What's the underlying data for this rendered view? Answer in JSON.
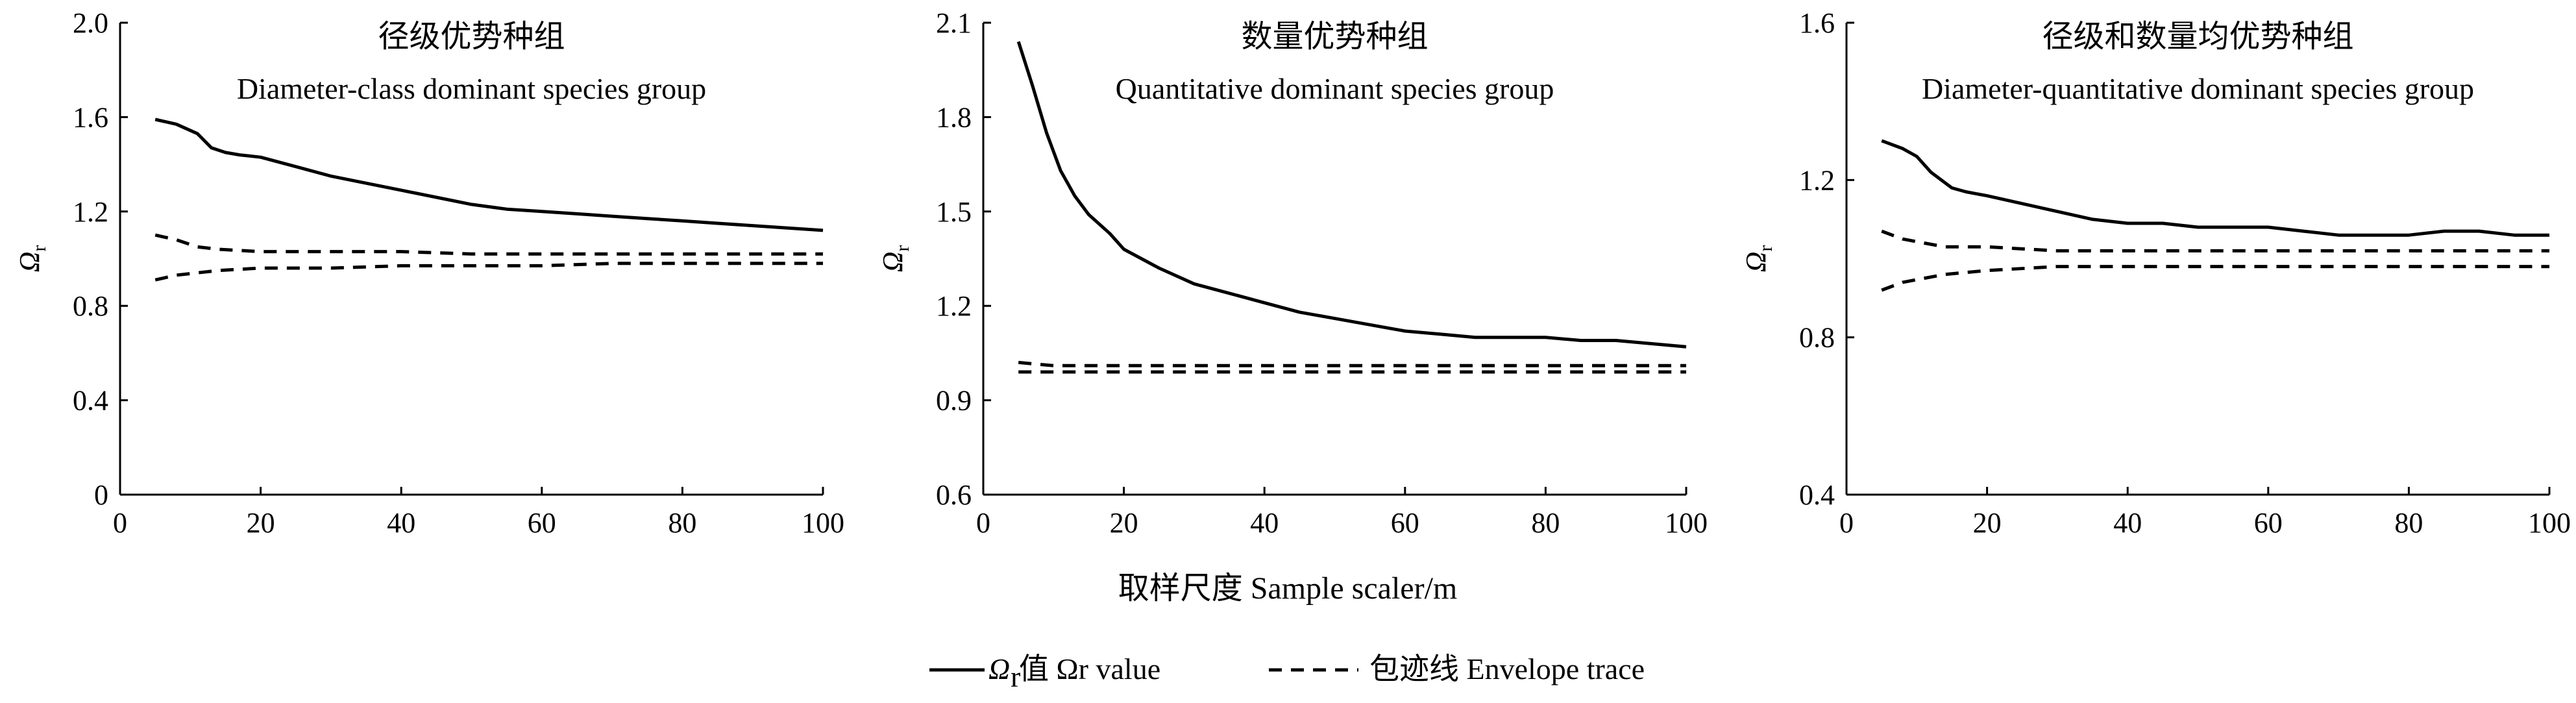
{
  "chart_data": [
    {
      "type": "line",
      "title": "径级优势种组",
      "subtitle": "Diameter-class dominant species group",
      "ylabel": "Ωr",
      "xlim": [
        0,
        100
      ],
      "ylim": [
        0,
        2.0
      ],
      "xticks": [
        0,
        20,
        40,
        60,
        80,
        100
      ],
      "yticks": [
        0,
        0.4,
        0.8,
        1.2,
        1.6,
        2.0
      ],
      "yticklabels": [
        "0",
        "0.4",
        "0.8",
        "1.2",
        "1.6",
        "2.0"
      ],
      "series": [
        {
          "role": "value",
          "x": [
            5,
            8,
            11,
            13,
            15,
            17,
            20,
            25,
            30,
            35,
            40,
            45,
            50,
            55,
            60,
            65,
            70,
            75,
            80,
            85,
            90,
            95,
            100
          ],
          "y": [
            1.59,
            1.57,
            1.53,
            1.47,
            1.45,
            1.44,
            1.43,
            1.39,
            1.35,
            1.32,
            1.29,
            1.26,
            1.23,
            1.21,
            1.2,
            1.19,
            1.18,
            1.17,
            1.16,
            1.15,
            1.14,
            1.13,
            1.12
          ]
        },
        {
          "role": "envelope-upper",
          "x": [
            5,
            8,
            11,
            14,
            20,
            30,
            40,
            50,
            60,
            70,
            80,
            90,
            100
          ],
          "y": [
            1.1,
            1.08,
            1.05,
            1.04,
            1.03,
            1.03,
            1.03,
            1.02,
            1.02,
            1.02,
            1.02,
            1.02,
            1.02
          ]
        },
        {
          "role": "envelope-lower",
          "x": [
            5,
            8,
            11,
            14,
            20,
            30,
            40,
            50,
            60,
            70,
            80,
            90,
            100
          ],
          "y": [
            0.91,
            0.93,
            0.94,
            0.95,
            0.96,
            0.96,
            0.97,
            0.97,
            0.97,
            0.98,
            0.98,
            0.98,
            0.98
          ]
        }
      ]
    },
    {
      "type": "line",
      "title": "数量优势种组",
      "subtitle": "Quantitative dominant species group",
      "ylabel": "Ωr",
      "xlim": [
        0,
        100
      ],
      "ylim": [
        0.6,
        2.1
      ],
      "xticks": [
        0,
        20,
        40,
        60,
        80,
        100
      ],
      "yticks": [
        0.6,
        0.9,
        1.2,
        1.5,
        1.8,
        2.1
      ],
      "yticklabels": [
        "0.6",
        "0.9",
        "1.2",
        "1.5",
        "1.8",
        "2.1"
      ],
      "series": [
        {
          "role": "value",
          "x": [
            5,
            7,
            9,
            11,
            13,
            15,
            18,
            20,
            25,
            30,
            35,
            40,
            45,
            50,
            55,
            60,
            65,
            70,
            75,
            80,
            85,
            90,
            95,
            100
          ],
          "y": [
            2.04,
            1.9,
            1.75,
            1.63,
            1.55,
            1.49,
            1.43,
            1.38,
            1.32,
            1.27,
            1.24,
            1.21,
            1.18,
            1.16,
            1.14,
            1.12,
            1.11,
            1.1,
            1.1,
            1.1,
            1.09,
            1.09,
            1.08,
            1.07
          ]
        },
        {
          "role": "envelope-upper",
          "x": [
            5,
            10,
            20,
            30,
            40,
            50,
            60,
            70,
            80,
            90,
            100
          ],
          "y": [
            1.02,
            1.01,
            1.01,
            1.01,
            1.01,
            1.01,
            1.01,
            1.01,
            1.01,
            1.01,
            1.01
          ]
        },
        {
          "role": "envelope-lower",
          "x": [
            5,
            10,
            20,
            30,
            40,
            50,
            60,
            70,
            80,
            90,
            100
          ],
          "y": [
            0.99,
            0.99,
            0.99,
            0.99,
            0.99,
            0.99,
            0.99,
            0.99,
            0.99,
            0.99,
            0.99
          ]
        }
      ]
    },
    {
      "type": "line",
      "title": "径级和数量均优势种组",
      "subtitle": "Diameter-quantitative dominant species group",
      "ylabel": "Ωr",
      "xlim": [
        0,
        100
      ],
      "ylim": [
        0.4,
        1.6
      ],
      "xticks": [
        0,
        20,
        40,
        60,
        80,
        100
      ],
      "yticks": [
        0.4,
        0.8,
        1.2,
        1.6
      ],
      "yticklabels": [
        "0.4",
        "0.8",
        "1.2",
        "1.6"
      ],
      "series": [
        {
          "role": "value",
          "x": [
            5,
            8,
            10,
            12,
            15,
            17,
            20,
            25,
            30,
            35,
            40,
            45,
            50,
            55,
            60,
            65,
            70,
            75,
            80,
            85,
            90,
            95,
            100
          ],
          "y": [
            1.3,
            1.28,
            1.26,
            1.22,
            1.18,
            1.17,
            1.16,
            1.14,
            1.12,
            1.1,
            1.09,
            1.09,
            1.08,
            1.08,
            1.08,
            1.07,
            1.06,
            1.06,
            1.06,
            1.07,
            1.07,
            1.06,
            1.06
          ]
        },
        {
          "role": "envelope-upper",
          "x": [
            5,
            8,
            11,
            14,
            20,
            30,
            40,
            50,
            60,
            70,
            80,
            90,
            100
          ],
          "y": [
            1.07,
            1.05,
            1.04,
            1.03,
            1.03,
            1.02,
            1.02,
            1.02,
            1.02,
            1.02,
            1.02,
            1.02,
            1.02
          ]
        },
        {
          "role": "envelope-lower",
          "x": [
            5,
            8,
            11,
            14,
            20,
            30,
            40,
            50,
            60,
            70,
            80,
            90,
            100
          ],
          "y": [
            0.92,
            0.94,
            0.95,
            0.96,
            0.97,
            0.98,
            0.98,
            0.98,
            0.98,
            0.98,
            0.98,
            0.98,
            0.98
          ]
        }
      ]
    }
  ],
  "shared": {
    "xlabel": "取样尺度  Sample scaler/m",
    "legend": {
      "value_label": "值  Ωr value",
      "envelope_label": "包迹线  Envelope trace"
    }
  }
}
